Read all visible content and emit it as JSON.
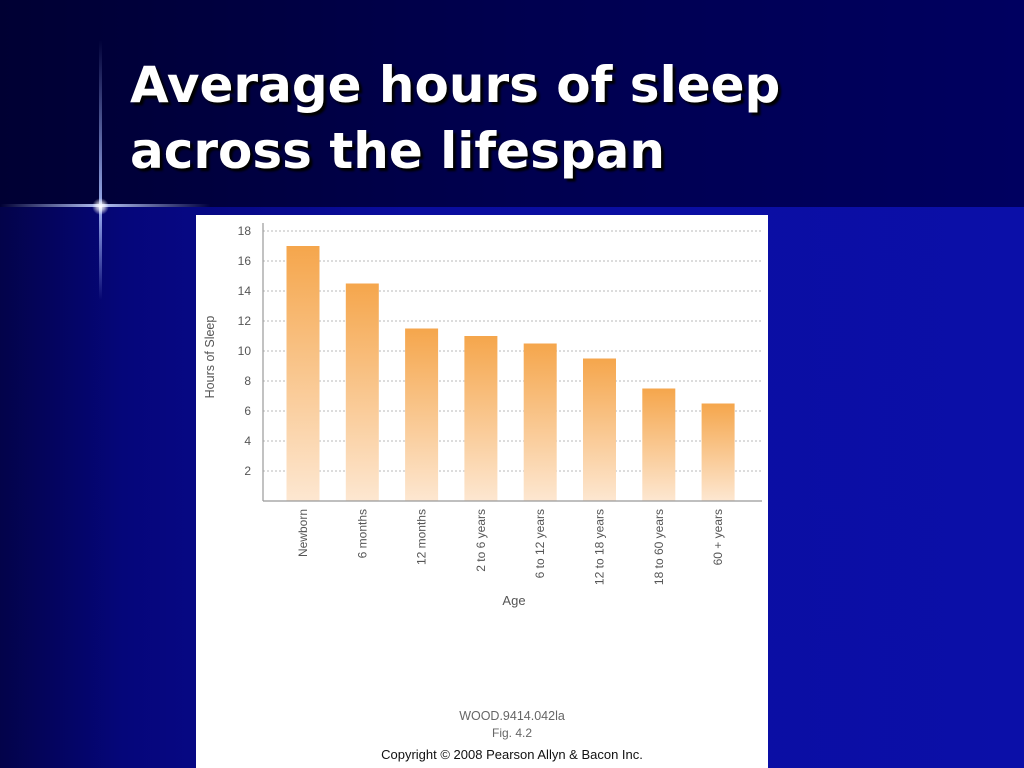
{
  "slide": {
    "title_line1": "Average hours of sleep",
    "title_line2": "across the lifespan"
  },
  "figure": {
    "code": "WOOD.9414.042la",
    "fig_number": "Fig. 4.2",
    "copyright": "Copyright © 2008 Pearson Allyn & Bacon Inc."
  },
  "colors": {
    "background": "#0a0d9a",
    "title_band": "#000050",
    "title_text": "#ffffff",
    "bar_top": "#f5a64c",
    "bar_bottom": "#fde7d1"
  },
  "chart_data": {
    "type": "bar",
    "title": "",
    "xlabel": "Age",
    "ylabel": "Hours of Sleep",
    "categories": [
      "Newborn",
      "6 months",
      "12 months",
      "2 to 6 years",
      "6 to 12 years",
      "12 to 18 years",
      "18 to 60 years",
      "60 + years"
    ],
    "values": [
      17,
      14.5,
      11.5,
      11,
      10.5,
      9.5,
      7.5,
      6.5
    ],
    "ylim": [
      0,
      18
    ],
    "yticks": [
      2,
      4,
      6,
      8,
      10,
      12,
      14,
      16,
      18
    ],
    "grid": true,
    "legend": "none"
  }
}
